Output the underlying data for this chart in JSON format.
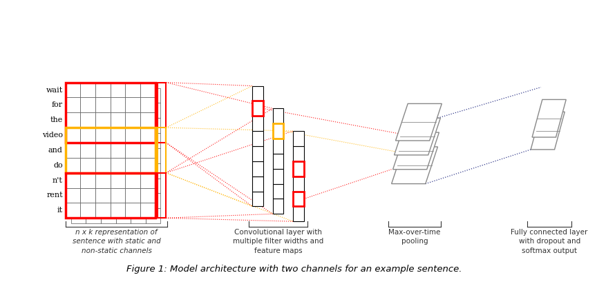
{
  "title": "Figure 1: Model architecture with two channels for an example sentence.",
  "words": [
    "wait",
    "for",
    "the",
    "video",
    "and",
    "do",
    "n't",
    "rent",
    "it"
  ],
  "bg_color": "#ffffff",
  "label_color": "#4466aa",
  "labels": {
    "input": "n x k representation of\nsentence with static and\nnon-static channels",
    "conv": "Convolutional layer with\nmultiple filter widths and\nfeature maps",
    "pool": "Max-over-time\npooling",
    "fc": "Fully connected layer\nwith dropout and\nsoftmax output"
  }
}
